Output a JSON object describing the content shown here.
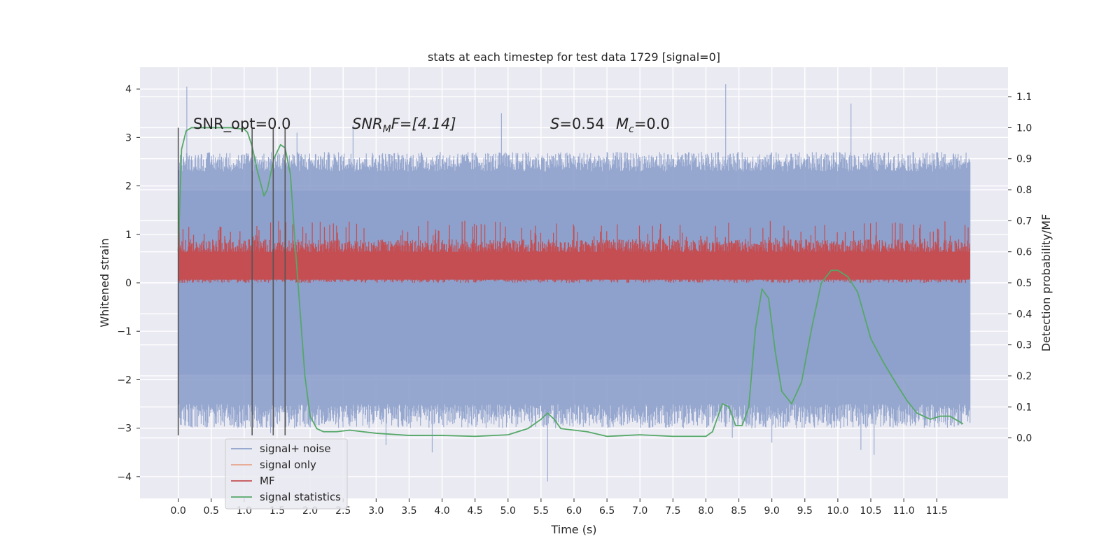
{
  "chart_data": {
    "type": "line",
    "title": "stats at each timestep for test data 1729 [signal=0]",
    "xlabel": "Time (s)",
    "ylabel_left": "Whitened strain",
    "ylabel_right": "Detection probability/MF",
    "xlim": [
      -0.58,
      12.58
    ],
    "ylim_left": [
      -4.45,
      4.45
    ],
    "ylim_right": [
      -0.195,
      1.195
    ],
    "x_ticks": [
      "0.0",
      "0.5",
      "1.0",
      "1.5",
      "2.0",
      "2.5",
      "3.0",
      "3.5",
      "4.0",
      "4.5",
      "5.0",
      "5.5",
      "6.0",
      "6.5",
      "7.0",
      "7.5",
      "8.0",
      "8.5",
      "9.0",
      "9.5",
      "10.0",
      "10.5",
      "11.0",
      "11.5"
    ],
    "y_ticks_left": [
      "4",
      "3",
      "2",
      "1",
      "0",
      "−1",
      "−2",
      "−3",
      "−4"
    ],
    "y_ticks_right": [
      "1.1",
      "1.0",
      "0.9",
      "0.8",
      "0.7",
      "0.6",
      "0.5",
      "0.4",
      "0.3",
      "0.2",
      "0.1",
      "0.0"
    ],
    "grid": true,
    "legend_position": "lower-left",
    "annotations": {
      "snr_opt": "SNR_opt=0.0",
      "snr_mf_main": "SNR",
      "snr_mf_sub": "M",
      "snr_mf_rest": "F=[4.14]",
      "s_label": "S",
      "s_value": "=0.54",
      "mc_main": "M",
      "mc_sub": "c",
      "mc_value": "=0.0"
    },
    "vertical_markers_x": [
      0.0,
      1.12,
      1.44,
      1.62
    ],
    "vertical_marker_yrange": [
      -3.15,
      3.2
    ],
    "series": [
      {
        "name": "signal+ noise",
        "color": "#8da0cb",
        "kind": "noise",
        "x_range": [
          0.0,
          12.0
        ],
        "band": [
          -2.5,
          2.3
        ],
        "peaks": [
          [
            0.13,
            4.05
          ],
          [
            1.8,
            3.1
          ],
          [
            2.65,
            3.25
          ],
          [
            4.9,
            3.5
          ],
          [
            8.3,
            4.1
          ],
          [
            10.2,
            3.7
          ],
          [
            0.5,
            -2.5
          ],
          [
            1.4,
            -3.1
          ],
          [
            3.15,
            -3.35
          ],
          [
            3.85,
            -3.5
          ],
          [
            5.6,
            -4.1
          ],
          [
            9.0,
            -3.3
          ],
          [
            10.35,
            -3.45
          ],
          [
            10.55,
            -3.55
          ],
          [
            11.1,
            -2.95
          ],
          [
            8.4,
            -3.2
          ]
        ]
      },
      {
        "name": "signal only",
        "color": "#e8a48a",
        "kind": "flat",
        "values": []
      },
      {
        "name": "MF",
        "color": "#c44e52",
        "kind": "mf",
        "x_range": [
          0.0,
          12.0
        ],
        "band_right": [
          0.5,
          0.64
        ]
      },
      {
        "name": "signal statistics",
        "color": "#55a868",
        "kind": "line",
        "x": [
          0.0,
          0.05,
          0.12,
          0.2,
          0.4,
          0.8,
          1.0,
          1.05,
          1.12,
          1.2,
          1.3,
          1.35,
          1.45,
          1.55,
          1.62,
          1.7,
          1.78,
          1.85,
          1.92,
          2.0,
          2.1,
          2.2,
          2.4,
          2.6,
          2.8,
          3.0,
          3.5,
          4.0,
          4.5,
          5.0,
          5.3,
          5.5,
          5.6,
          5.7,
          5.8,
          6.0,
          6.2,
          6.5,
          7.0,
          7.5,
          8.0,
          8.1,
          8.25,
          8.35,
          8.45,
          8.55,
          8.65,
          8.75,
          8.85,
          8.95,
          9.05,
          9.15,
          9.3,
          9.45,
          9.6,
          9.75,
          9.9,
          10.0,
          10.15,
          10.3,
          10.5,
          10.7,
          10.9,
          11.05,
          11.2,
          11.4,
          11.55,
          11.7,
          11.9
        ],
        "y": [
          0.6,
          0.93,
          0.99,
          1.0,
          1.0,
          1.0,
          0.995,
          0.985,
          0.94,
          0.86,
          0.78,
          0.8,
          0.9,
          0.945,
          0.935,
          0.85,
          0.6,
          0.4,
          0.2,
          0.07,
          0.03,
          0.02,
          0.02,
          0.025,
          0.02,
          0.015,
          0.008,
          0.008,
          0.005,
          0.01,
          0.03,
          0.06,
          0.08,
          0.06,
          0.03,
          0.025,
          0.02,
          0.005,
          0.01,
          0.005,
          0.005,
          0.02,
          0.11,
          0.1,
          0.04,
          0.04,
          0.1,
          0.35,
          0.48,
          0.45,
          0.28,
          0.15,
          0.11,
          0.18,
          0.35,
          0.5,
          0.54,
          0.54,
          0.52,
          0.47,
          0.32,
          0.24,
          0.17,
          0.12,
          0.08,
          0.06,
          0.07,
          0.07,
          0.045
        ]
      }
    ]
  }
}
